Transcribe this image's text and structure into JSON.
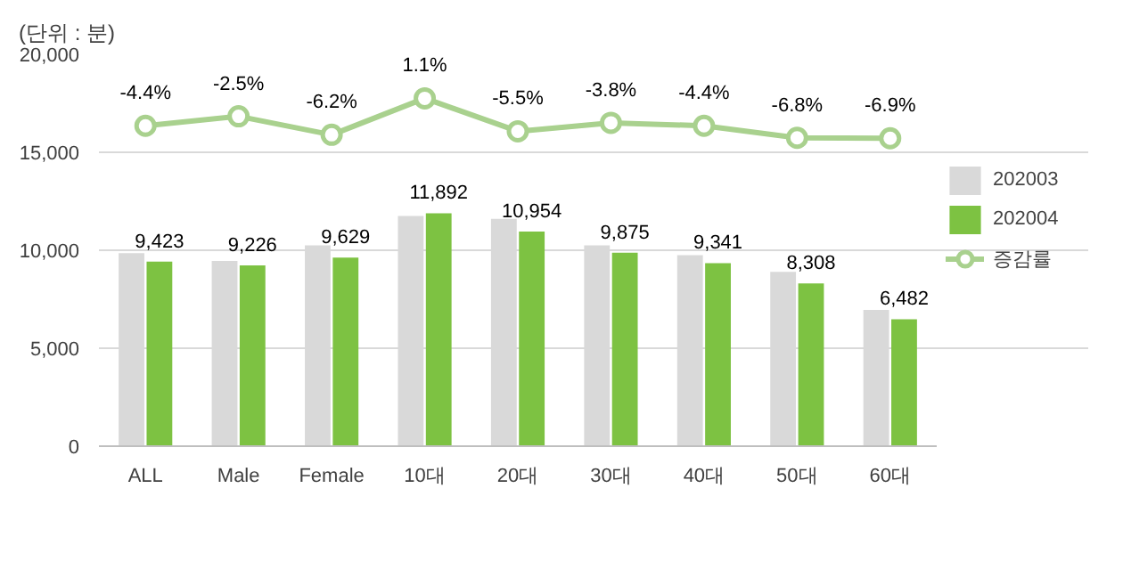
{
  "chart_data": {
    "type": "bar",
    "title": "(단위 : 분)",
    "categories": [
      "ALL",
      "Male",
      "Female",
      "10대",
      "20대",
      "30대",
      "40대",
      "50대",
      "60대"
    ],
    "series": [
      {
        "name": "202003",
        "color": "#d9d9d9",
        "values": [
          9850,
          9450,
          10250,
          11750,
          11600,
          10250,
          9750,
          8900,
          6950
        ]
      },
      {
        "name": "202004",
        "color": "#7dc242",
        "values": [
          9423,
          9226,
          9629,
          11892,
          10954,
          9875,
          9341,
          8308,
          6482
        ],
        "value_labels": [
          "9,423",
          "9,226",
          "9,629",
          "11,892",
          "10,954",
          "9,875",
          "9,341",
          "8,308",
          "6,482"
        ]
      },
      {
        "name": "증감률",
        "type": "line",
        "axis": "y2",
        "color": "#a9d18e",
        "marker": "circle",
        "values": [
          -4.4,
          -2.5,
          -6.2,
          1.1,
          -5.5,
          -3.8,
          -4.4,
          -6.8,
          -6.9
        ],
        "value_labels": [
          "-4.4%",
          "-2.5%",
          "-6.2%",
          "1.1%",
          "-5.5%",
          "-3.8%",
          "-4.4%",
          "-6.8%",
          "-6.9%"
        ]
      }
    ],
    "ylim": [
      0,
      20000
    ],
    "yticks": [
      {
        "value": 0,
        "label": "0"
      },
      {
        "value": 5000,
        "label": "5,000"
      },
      {
        "value": 10000,
        "label": "10,000"
      },
      {
        "value": 15000,
        "label": "15,000"
      },
      {
        "value": 20000,
        "label": "20,000"
      }
    ],
    "grid": "y",
    "legend": "right"
  }
}
